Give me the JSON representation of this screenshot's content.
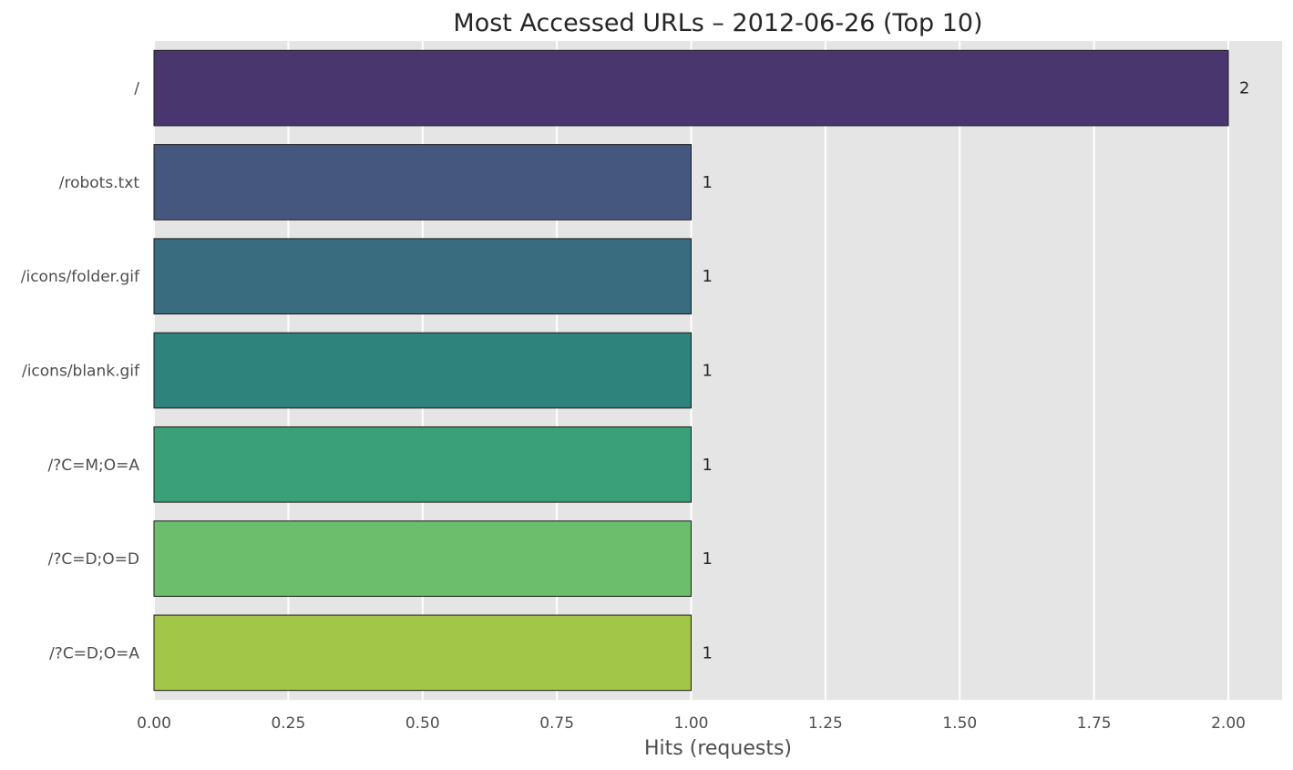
{
  "chart_data": {
    "type": "bar",
    "orientation": "horizontal",
    "title": "Most Accessed URLs – 2012-06-26 (Top 10)",
    "xlabel": "Hits (requests)",
    "ylabel": "",
    "categories": [
      "/",
      "/robots.txt",
      "/icons/folder.gif",
      "/icons/blank.gif",
      "/?C=M;O=A",
      "/?C=D;O=D",
      "/?C=D;O=A"
    ],
    "values": [
      2,
      1,
      1,
      1,
      1,
      1,
      1
    ],
    "data_labels": [
      "2",
      "1",
      "1",
      "1",
      "1",
      "1",
      "1"
    ],
    "colors": [
      "#4a366f",
      "#45577f",
      "#3a6c80",
      "#2e837c",
      "#3aa07a",
      "#6cbd6c",
      "#a2c748"
    ],
    "xlim": [
      0,
      2.1
    ],
    "xticks": [
      0,
      0.25,
      0.5,
      0.75,
      1,
      1.25,
      1.5,
      1.75,
      2
    ],
    "xtick_labels": [
      "0.00",
      "0.25",
      "0.50",
      "0.75",
      "1.00",
      "1.25",
      "1.50",
      "1.75",
      "2.00"
    ],
    "grid": true,
    "background_color": "#e5e5e5",
    "grid_color": "#ffffff"
  }
}
